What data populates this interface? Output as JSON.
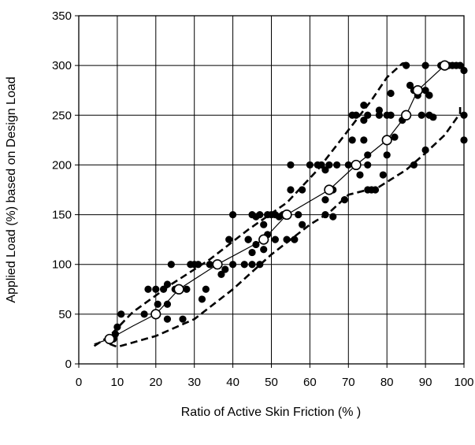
{
  "chart_data": {
    "type": "scatter",
    "title": "",
    "xlabel": "Ratio of Active Skin Friction (% )",
    "ylabel": "Applied  Load (%) based on Design Load",
    "xlim": [
      0,
      100
    ],
    "ylim": [
      0,
      350
    ],
    "x_ticks": [
      0,
      10,
      20,
      30,
      40,
      50,
      60,
      70,
      80,
      90,
      100
    ],
    "y_ticks": [
      0,
      50,
      100,
      150,
      200,
      250,
      300,
      350
    ],
    "x_tick_labels": [
      "0",
      "10",
      "20",
      "30",
      "40",
      "50",
      "60",
      "70",
      "80",
      "90",
      "100"
    ],
    "y_tick_labels": [
      "0",
      "50",
      "100",
      "150",
      "200",
      "250",
      "300",
      "350"
    ],
    "grid": true,
    "legend": "none",
    "colors": {
      "axis": "#000000",
      "grid": "#000000",
      "points": "#000000",
      "mean_points_fill": "#ffffff"
    },
    "series": [
      {
        "style": "filled-circle",
        "points": [
          [
            9,
            25
          ],
          [
            10,
            37
          ],
          [
            9.5,
            30
          ],
          [
            11,
            50
          ],
          [
            17,
            50
          ],
          [
            18,
            75
          ],
          [
            20,
            75
          ],
          [
            20.5,
            60
          ],
          [
            22,
            75
          ],
          [
            23,
            80
          ],
          [
            23,
            60
          ],
          [
            23,
            45
          ],
          [
            24,
            100
          ],
          [
            25,
            75
          ],
          [
            27,
            45
          ],
          [
            28,
            75
          ],
          [
            29,
            100
          ],
          [
            30,
            100
          ],
          [
            31,
            100
          ],
          [
            32,
            65
          ],
          [
            33,
            75
          ],
          [
            34,
            100
          ],
          [
            36,
            100
          ],
          [
            37,
            90
          ],
          [
            38,
            95
          ],
          [
            39,
            125
          ],
          [
            40,
            150
          ],
          [
            40,
            100
          ],
          [
            43,
            100
          ],
          [
            44,
            125
          ],
          [
            44,
            125
          ],
          [
            45,
            100
          ],
          [
            45,
            112
          ],
          [
            45,
            150
          ],
          [
            46,
            148
          ],
          [
            46,
            120
          ],
          [
            47,
            100
          ],
          [
            47,
            150
          ],
          [
            48,
            140
          ],
          [
            48,
            115
          ],
          [
            49,
            150
          ],
          [
            49,
            130
          ],
          [
            50,
            150
          ],
          [
            51,
            150
          ],
          [
            51,
            125
          ],
          [
            52,
            148
          ],
          [
            53,
            150
          ],
          [
            54,
            125
          ],
          [
            55,
            200
          ],
          [
            55,
            175
          ],
          [
            56,
            125
          ],
          [
            57,
            150
          ],
          [
            58,
            140
          ],
          [
            58,
            175
          ],
          [
            60,
            200
          ],
          [
            62,
            200
          ],
          [
            63,
            200
          ],
          [
            64,
            165
          ],
          [
            64,
            150
          ],
          [
            64,
            195
          ],
          [
            65,
            200
          ],
          [
            66,
            175
          ],
          [
            66,
            148
          ],
          [
            67,
            200
          ],
          [
            69,
            165
          ],
          [
            70,
            200
          ],
          [
            71,
            225
          ],
          [
            71,
            250
          ],
          [
            72,
            250
          ],
          [
            73,
            190
          ],
          [
            74,
            225
          ],
          [
            74,
            245
          ],
          [
            74,
            260
          ],
          [
            75,
            200
          ],
          [
            75,
            210
          ],
          [
            75,
            250
          ],
          [
            75,
            175
          ],
          [
            76,
            175
          ],
          [
            77,
            175
          ],
          [
            78,
            250
          ],
          [
            78,
            255
          ],
          [
            79,
            190
          ],
          [
            80,
            210
          ],
          [
            80,
            250
          ],
          [
            81,
            272
          ],
          [
            81,
            250
          ],
          [
            82,
            228
          ],
          [
            84,
            245
          ],
          [
            85,
            300
          ],
          [
            86,
            280
          ],
          [
            87,
            275
          ],
          [
            87,
            200
          ],
          [
            88,
            270
          ],
          [
            89,
            250
          ],
          [
            90,
            215
          ],
          [
            90,
            300
          ],
          [
            90,
            275
          ],
          [
            91,
            270
          ],
          [
            91,
            250
          ],
          [
            92,
            248
          ],
          [
            94,
            300
          ],
          [
            96,
            300
          ],
          [
            97,
            300
          ],
          [
            98,
            300
          ],
          [
            99,
            300
          ],
          [
            100,
            295
          ],
          [
            100,
            250
          ],
          [
            100,
            225
          ]
        ]
      },
      {
        "style": "open-circle",
        "points": [
          [
            8,
            25
          ],
          [
            20,
            50
          ],
          [
            26,
            75
          ],
          [
            36,
            100
          ],
          [
            48,
            125
          ],
          [
            54,
            150
          ],
          [
            65,
            175
          ],
          [
            72,
            200
          ],
          [
            80,
            225
          ],
          [
            85,
            250
          ],
          [
            88,
            275
          ],
          [
            95,
            300
          ]
        ]
      },
      {
        "style": "solid-line",
        "points": [
          [
            4,
            20
          ],
          [
            8,
            25
          ],
          [
            14,
            38
          ],
          [
            20,
            50
          ],
          [
            26,
            75
          ],
          [
            36,
            100
          ],
          [
            48,
            125
          ],
          [
            54,
            150
          ],
          [
            65,
            175
          ],
          [
            72,
            200
          ],
          [
            80,
            225
          ],
          [
            85,
            250
          ],
          [
            88,
            275
          ],
          [
            95,
            300
          ],
          [
            99,
            300
          ]
        ]
      },
      {
        "style": "dashed-line",
        "points": [
          [
            4,
            18
          ],
          [
            8,
            28
          ],
          [
            14,
            52
          ],
          [
            24,
            80
          ],
          [
            34,
            105
          ],
          [
            44,
            135
          ],
          [
            54,
            162
          ],
          [
            62,
            195
          ],
          [
            70,
            235
          ],
          [
            76,
            265
          ],
          [
            80,
            288
          ],
          [
            84,
            302
          ],
          [
            86,
            303
          ]
        ]
      },
      {
        "style": "dashed-line",
        "points": [
          [
            8,
            20
          ],
          [
            10,
            17
          ],
          [
            20,
            28
          ],
          [
            30,
            45
          ],
          [
            40,
            75
          ],
          [
            50,
            110
          ],
          [
            60,
            140
          ],
          [
            65,
            152
          ],
          [
            70,
            170
          ],
          [
            78,
            178
          ],
          [
            85,
            195
          ],
          [
            90,
            212
          ],
          [
            95,
            230
          ],
          [
            99,
            252
          ],
          [
            99,
            260
          ]
        ]
      }
    ]
  }
}
